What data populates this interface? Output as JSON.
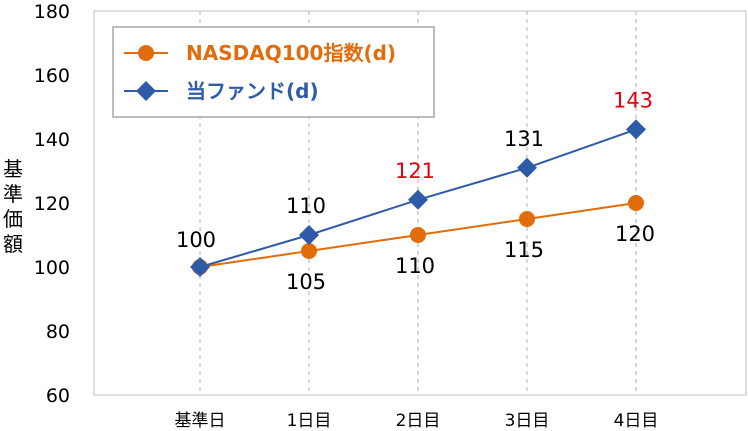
{
  "chart_data": {
    "type": "line",
    "categories": [
      "基準日",
      "1日目",
      "2日目",
      "3日目",
      "4日目"
    ],
    "series": [
      {
        "name": "NASDAQ100指数(d)",
        "values": [
          100,
          105,
          110,
          115,
          120
        ],
        "labels": [
          "100",
          "105",
          "110",
          "115",
          "120"
        ],
        "label_colors": [
          "#000000",
          "#000000",
          "#000000",
          "#000000",
          "#000000"
        ],
        "color": "#E36C0A",
        "marker": "circle"
      },
      {
        "name": "当ファンド(d)",
        "values": [
          100,
          110,
          121,
          131,
          143
        ],
        "labels": [
          "",
          "110",
          "121",
          "131",
          "143"
        ],
        "label_colors": [
          "#000000",
          "#000000",
          "#E8000D",
          "#000000",
          "#E8000D"
        ],
        "color": "#2E5BA8",
        "marker": "diamond"
      }
    ],
    "data_label_first": "100",
    "ylabel": "基準価額",
    "yticks": [
      "60",
      "80",
      "100",
      "120",
      "140",
      "160",
      "180"
    ],
    "ylim": [
      60,
      180
    ],
    "grid": "vertical-dashed",
    "legend_position": "top-left"
  }
}
